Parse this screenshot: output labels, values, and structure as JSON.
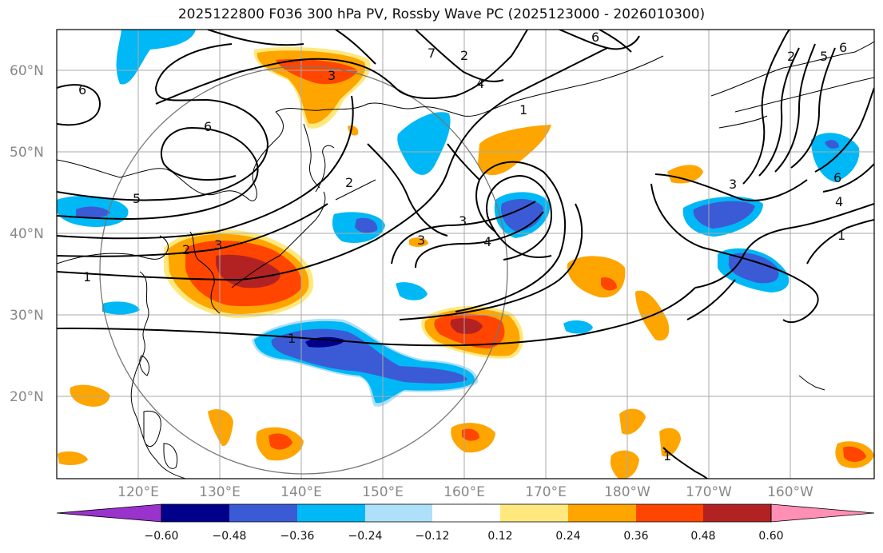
{
  "title": "2025122800 F036 300 hPa PV, Rossby Wave PC (2025123000 - 2026010300)",
  "lat_labels": [
    "60°N",
    "50°N",
    "40°N",
    "30°N",
    "20°N"
  ],
  "lon_labels": [
    "120°E",
    "130°E",
    "140°E",
    "150°E",
    "160°E",
    "170°E",
    "180°W",
    "170°W",
    "160°W"
  ],
  "colorbar": {
    "colors": [
      "#9933cc",
      "#00008b",
      "#3b5bd6",
      "#00b8f5",
      "#aee0fa",
      "#ffffff",
      "#ffe97f",
      "#ffa500",
      "#ff4500",
      "#b22222",
      "#ff8fb5"
    ],
    "ticks": [
      "−0.60",
      "−0.48",
      "−0.36",
      "−0.24",
      "−0.12",
      "0.12",
      "0.24",
      "0.36",
      "0.48",
      "0.60"
    ]
  },
  "contour_labels": [
    "6",
    "7",
    "2",
    "6",
    "6",
    "5",
    "3",
    "2",
    "1",
    "3",
    "4",
    "1",
    "3",
    "4",
    "1",
    "6",
    "2",
    "5",
    "6",
    "1",
    "1"
  ]
}
